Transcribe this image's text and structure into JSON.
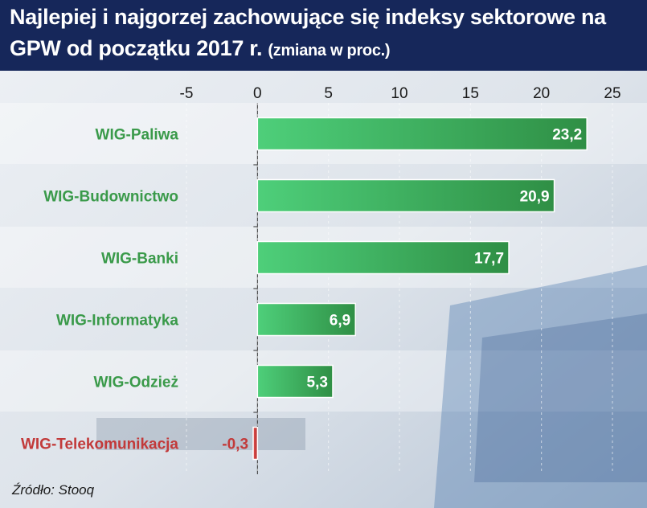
{
  "header": {
    "title_line1": "Najlepiej i najgorzej zachowujące się indeksy sektorowe na",
    "title_line2": "GPW od początku 2017 r.",
    "subtitle": "(zmiana w proc.)"
  },
  "source": "Źródło: Stooq",
  "colors": {
    "header_bg": "#16275a",
    "positive_bar": "#3fae5a",
    "positive_label": "#3a9a4a",
    "negative_bar": "#c9403f",
    "negative_label": "#c23a3a"
  },
  "chart_data": {
    "type": "bar",
    "orientation": "horizontal",
    "categories": [
      "WIG-Paliwa",
      "WIG-Budownictwo",
      "WIG-Banki",
      "WIG-Informatyka",
      "WIG-Odzież",
      "WIG-Telekomunikacja"
    ],
    "values": [
      23.2,
      20.9,
      17.7,
      6.9,
      5.3,
      -0.3
    ],
    "value_labels": [
      "23,2",
      "20,9",
      "17,7",
      "6,9",
      "5,3",
      "-0,3"
    ],
    "xlim": [
      -5,
      25
    ],
    "xticks": [
      -5,
      0,
      5,
      10,
      15,
      20,
      25
    ],
    "xtick_labels": [
      "-5",
      "0",
      "5",
      "10",
      "15",
      "20",
      "25"
    ],
    "axis_position": "top"
  }
}
